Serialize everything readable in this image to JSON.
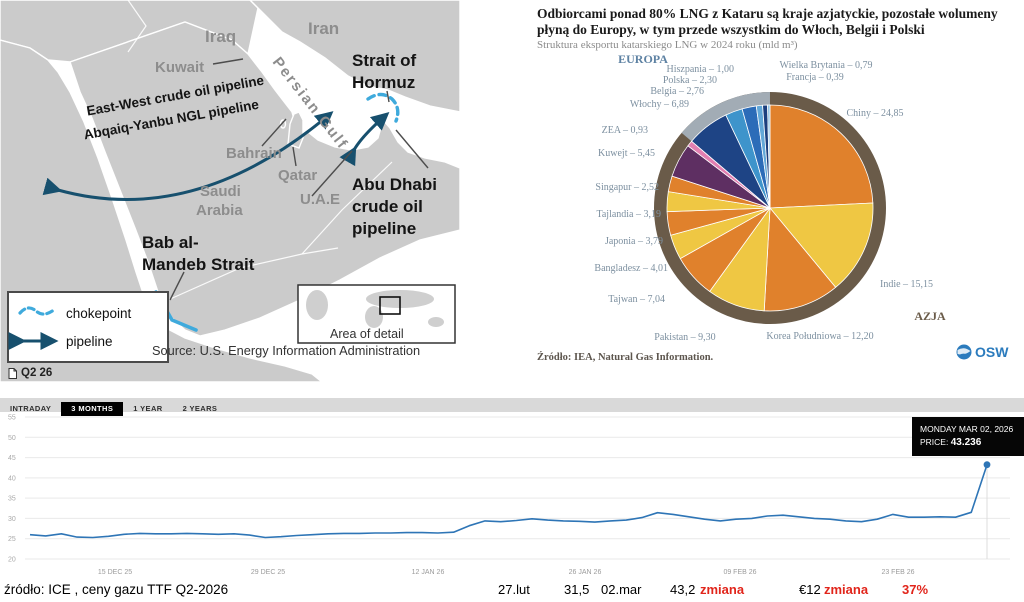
{
  "map": {
    "labels": {
      "iraq": "Iraq",
      "iran": "Iran",
      "kuwait": "Kuwait",
      "bahrain": "Bahrain",
      "qatar": "Qatar",
      "saudi1": "Saudi",
      "saudi2": "Arabia",
      "uae": "U.A.E",
      "persian_gulf": "Persian Gulf",
      "hormuz1": "Strait of",
      "hormuz2": "Hormuz",
      "pipeline1": "East-West crude oil pipeline",
      "pipeline2": "Abqaiq-Yanbu NGL pipeline",
      "abudhabi1": "Abu Dhabi",
      "abudhabi2": "crude oil",
      "abudhabi3": "pipeline",
      "mandeb1": "Bab al-",
      "mandeb2": "Mandeb Strait",
      "legend_chokepoint": "chokepoint",
      "legend_pipeline": "pipeline",
      "area_of_detail": "Area of detail",
      "source": "Source: U.S. Energy Information Administration",
      "period_tag": "Q2 26"
    },
    "colors": {
      "land": "#cbcbcb",
      "pipeline": "#17506e",
      "chokepoint": "#3faadc"
    }
  },
  "pie": {
    "title1": "Odbiorcami ponad 80% LNG z Kataru są kraje azjatyckie, pozostałe wolumeny",
    "title2": "płyną do Europy, w tym przede wszystkim do Włoch, Belgii i Polski",
    "subtitle": "Struktura eksportu  katarskiego LNG w 2024 roku (mld m³)",
    "region_europe": "EUROPA",
    "region_asia": "AZJA",
    "source": "Źródło: IEA, Natural Gas Information.",
    "logo_text": "OSW",
    "colors": {
      "ring_asia": "#6a5b49",
      "ring_europe": "#a2acb5",
      "europe_label": "#5e82a3",
      "asia_label": "#6a5b49"
    }
  },
  "price_chart": {
    "tabs": [
      {
        "label": "INTRADAY",
        "active": false
      },
      {
        "label": "3 MONTHS",
        "active": true
      },
      {
        "label": "1 YEAR",
        "active": false
      },
      {
        "label": "2 YEARS",
        "active": false
      }
    ],
    "tooltip": {
      "date": "MONDAY MAR 02, 2026",
      "price_label": "PRICE:",
      "price": "43.236"
    },
    "footer": {
      "source": "źródło: ICE , ceny gazu TTF Q2-2026",
      "items": [
        {
          "text": "27.lut",
          "red": false
        },
        {
          "text": "31,5",
          "red": false
        },
        {
          "text": "02.mar",
          "red": false
        },
        {
          "text": "43,2",
          "red": false
        },
        {
          "text": "zmiana",
          "red": true
        },
        {
          "text": "€12",
          "red": false
        },
        {
          "text": "zmiana",
          "red": true
        },
        {
          "text": "37%",
          "red": true
        }
      ]
    },
    "colors": {
      "line": "#2e75b6",
      "red": "#e1251b"
    }
  },
  "chart_data": [
    {
      "type": "pie",
      "title": "Struktura eksportu katarskiego LNG w 2024 roku (mld m³)",
      "unit": "mld m³",
      "slices": [
        {
          "name": "Chiny",
          "value": 24.85,
          "color": "#e0812c",
          "region": "AZJA"
        },
        {
          "name": "Indie",
          "value": 15.15,
          "color": "#efc743",
          "region": "AZJA"
        },
        {
          "name": "Korea Południowa",
          "value": 12.2,
          "color": "#e0812c",
          "region": "AZJA"
        },
        {
          "name": "Pakistan",
          "value": 9.3,
          "color": "#efc743",
          "region": "AZJA"
        },
        {
          "name": "Tajwan",
          "value": 7.04,
          "color": "#e0812c",
          "region": "AZJA"
        },
        {
          "name": "Bangladesz",
          "value": 4.01,
          "color": "#efc743",
          "region": "AZJA"
        },
        {
          "name": "Japonia",
          "value": 3.79,
          "color": "#e0812c",
          "region": "AZJA"
        },
        {
          "name": "Tajlandia",
          "value": 3.19,
          "color": "#efc743",
          "region": "AZJA"
        },
        {
          "name": "Singapur",
          "value": 2.52,
          "color": "#e0812c",
          "region": "AZJA"
        },
        {
          "name": "Kuwejt",
          "value": 5.45,
          "color": "#5e2f62",
          "region": "AZJA"
        },
        {
          "name": "ZEA",
          "value": 0.93,
          "color": "#e27fb1",
          "region": "AZJA"
        },
        {
          "name": "Włochy",
          "value": 6.89,
          "color": "#1e4485",
          "region": "EUROPA"
        },
        {
          "name": "Belgia",
          "value": 2.76,
          "color": "#3e94cb",
          "region": "EUROPA"
        },
        {
          "name": "Polska",
          "value": 2.3,
          "color": "#2c6cb8",
          "region": "EUROPA"
        },
        {
          "name": "Hiszpania",
          "value": 1.0,
          "color": "#63a8d8",
          "region": "EUROPA"
        },
        {
          "name": "Wielka Brytania",
          "value": 0.79,
          "color": "#1c3f7e",
          "region": "EUROPA"
        },
        {
          "name": "Francja",
          "value": 0.39,
          "color": "#8fc3e4",
          "region": "EUROPA"
        }
      ]
    },
    {
      "type": "line",
      "title": "ceny gazu TTF Q2-2026",
      "x_tick_labels": [
        "15 DEC 25",
        "29 DEC 25",
        "12 JAN 26",
        "26 JAN 26",
        "09 FEB 26",
        "23 FEB 26"
      ],
      "y_ticks": [
        55,
        50,
        45,
        40,
        35,
        30,
        25,
        20
      ],
      "ylim": [
        20,
        55
      ],
      "values": [
        26.0,
        25.7,
        26.2,
        25.4,
        25.3,
        25.6,
        26.1,
        26.3,
        26.2,
        26.2,
        26.3,
        26.2,
        26.1,
        26.2,
        25.9,
        25.3,
        25.5,
        25.8,
        26.0,
        26.2,
        26.3,
        26.3,
        26.4,
        26.4,
        26.5,
        26.5,
        26.4,
        26.6,
        28.2,
        29.4,
        29.2,
        29.5,
        29.9,
        29.6,
        29.4,
        29.3,
        29.1,
        29.4,
        29.6,
        30.2,
        31.4,
        31.0,
        30.4,
        29.8,
        29.4,
        29.8,
        30.0,
        30.6,
        30.8,
        30.4,
        30.0,
        29.8,
        29.4,
        29.2,
        29.8,
        31.0,
        30.3,
        30.3,
        30.4,
        30.3,
        31.5,
        43.236
      ],
      "last_point": {
        "date": "MONDAY MAR 02, 2026",
        "price": 43.236
      }
    }
  ]
}
